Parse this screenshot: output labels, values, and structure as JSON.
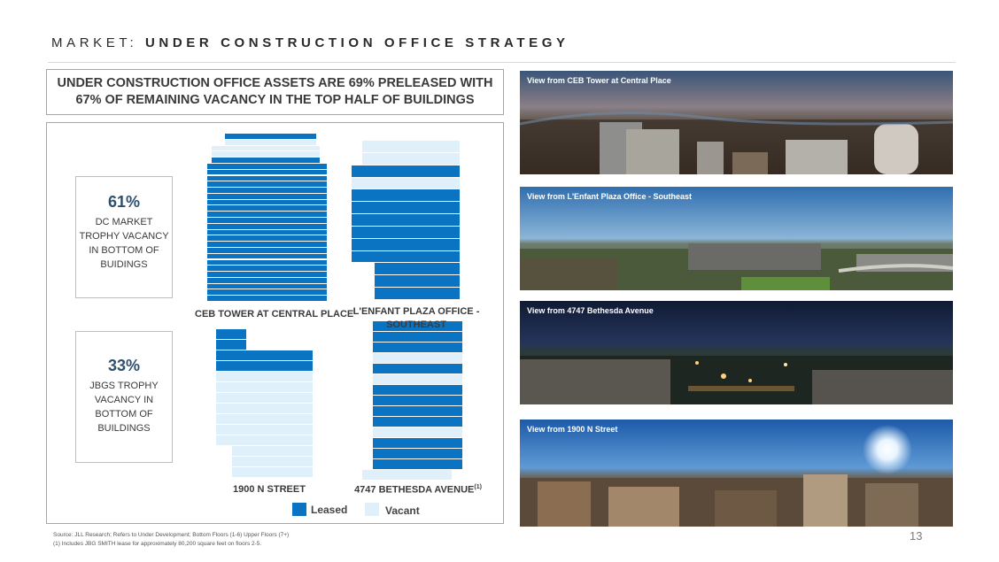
{
  "header": {
    "title_prefix": "MARKET:",
    "title_main": "UNDER CONSTRUCTION OFFICE STRATEGY"
  },
  "headline": "UNDER CONSTRUCTION OFFICE ASSETS ARE 69% PRELEASED WITH 67% OF REMAINING VACANCY IN THE TOP HALF OF BUILDINGS",
  "callouts": [
    {
      "pct": "61%",
      "text": "DC MARKET TROPHY VACANCY IN BOTTOM OF BUIDINGS"
    },
    {
      "pct": "33%",
      "text": "JBGS TROPHY VACANCY IN BOTTOM OF BUILDINGS"
    }
  ],
  "buildings": [
    {
      "label": "CEB TOWER AT CENTRAL PLACE",
      "floors_top_to_bottom": [
        "leased",
        "vacant",
        "vacant",
        "vacant",
        "leased",
        "leased",
        "leased",
        "leased",
        "leased",
        "leased",
        "leased",
        "leased",
        "leased",
        "leased",
        "leased",
        "leased",
        "leased",
        "leased",
        "leased",
        "leased",
        "leased",
        "leased",
        "leased",
        "leased",
        "leased",
        "leased",
        "leased",
        "leased"
      ]
    },
    {
      "label": "L'ENFANT PLAZA OFFICE - SOUTHEAST",
      "floors_top_to_bottom": [
        "vacant",
        "vacant",
        "leased",
        "vacant",
        "leased",
        "leased",
        "leased",
        "leased",
        "leased",
        "leased",
        "leased",
        "leased",
        "leased"
      ]
    },
    {
      "label": "1900 N STREET",
      "floors_top_to_bottom": [
        "leased",
        "leased",
        "leased",
        "leased",
        "vacant",
        "vacant",
        "vacant",
        "vacant",
        "vacant",
        "vacant",
        "vacant",
        "vacant",
        "vacant",
        "vacant"
      ]
    },
    {
      "label": "4747 BETHESDA AVENUE",
      "label_note": "(1)",
      "floors_top_to_bottom": [
        "leased",
        "leased",
        "leased",
        "vacant",
        "leased",
        "vacant",
        "leased",
        "leased",
        "leased",
        "leased",
        "vacant",
        "leased",
        "leased",
        "leased",
        "vacant"
      ]
    }
  ],
  "legend": {
    "leased": "Leased",
    "vacant": "Vacant"
  },
  "colors": {
    "leased": "#0a73c2",
    "vacant": "#dff0fb",
    "accent_text": "#2f4f6f"
  },
  "photos": [
    {
      "caption": "View from CEB Tower at Central Place",
      "scene": "dusk-city"
    },
    {
      "caption": "View from L'Enfant Plaza Office - Southeast",
      "scene": "day-city"
    },
    {
      "caption": "View from 4747 Bethesda Avenue",
      "scene": "night-town"
    },
    {
      "caption": "View from 1900 N Street",
      "scene": "sunny-city"
    }
  ],
  "footer": {
    "source": "Source: JLL Research; Refers to Under Development; Bottom Floors (1-6) Upper Floors (7+)",
    "note": "(1)  Includes JBG SMITH lease for approximately 80,200 square feet on floors 2-5.",
    "page_number": "13"
  }
}
